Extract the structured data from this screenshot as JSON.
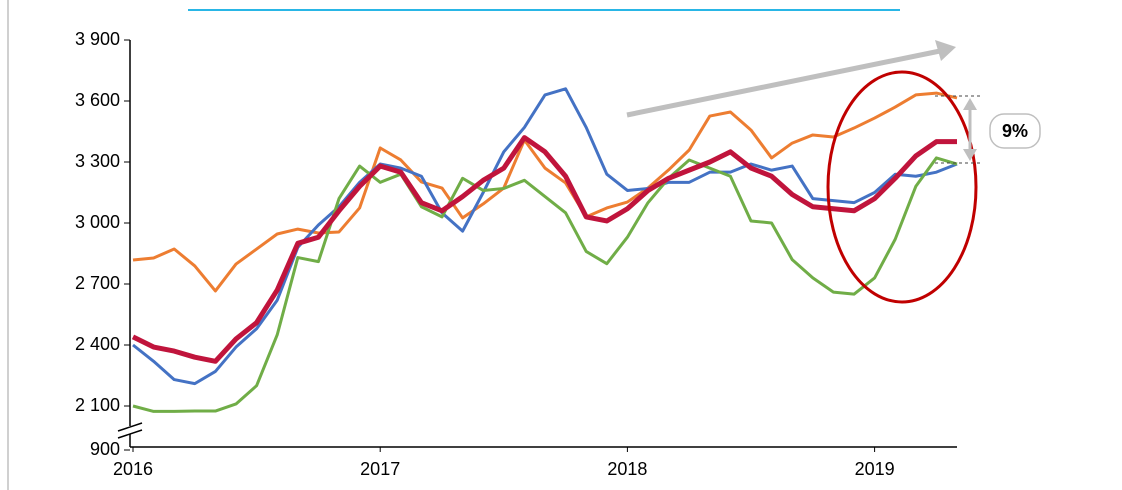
{
  "chart_data": {
    "type": "line",
    "x": [
      0,
      1,
      2,
      3,
      4,
      5,
      6,
      7,
      8,
      9,
      10,
      11,
      12,
      13,
      14,
      15,
      16,
      17,
      18,
      19,
      20,
      21,
      22,
      23,
      24,
      25,
      26,
      27,
      28,
      29,
      30,
      31,
      32,
      33,
      34,
      35,
      36,
      37,
      38,
      39,
      40
    ],
    "xlim": [
      0,
      40
    ],
    "xticks": [
      {
        "value": 0,
        "label": "2016"
      },
      {
        "value": 12,
        "label": "2017"
      },
      {
        "value": 24,
        "label": "2018"
      },
      {
        "value": 36,
        "label": "2019"
      }
    ],
    "ylim": [
      900,
      3900
    ],
    "y_break": [
      900,
      2100
    ],
    "yticks": [
      900,
      {
        "value": 2100,
        "label": "2 100"
      },
      {
        "value": 2400,
        "label": "2 400"
      },
      {
        "value": 2700,
        "label": "2 700"
      },
      {
        "value": 3000,
        "label": "3 000"
      },
      {
        "value": 3300,
        "label": "3 300"
      },
      {
        "value": 3600,
        "label": "3 600"
      },
      {
        "value": 3900,
        "label": "3 900"
      }
    ],
    "series": [
      {
        "color": "#ed7d31",
        "values": [
          2818,
          2828,
          2872,
          2789,
          2666,
          2798,
          2872,
          2946,
          2970,
          2951,
          2956,
          3074,
          3369,
          3310,
          3202,
          3172,
          3025,
          3094,
          3172,
          3408,
          3270,
          3197,
          3030,
          3074,
          3103,
          3172,
          3261,
          3359,
          3526,
          3546,
          3457,
          3320,
          3393,
          3433,
          3423,
          3467,
          3516,
          3570,
          3630,
          3639,
          3615
        ]
      },
      {
        "color": "#4472c4",
        "values": [
          2400,
          2320,
          2230,
          2210,
          2270,
          2390,
          2480,
          2620,
          2880,
          2990,
          3080,
          3200,
          3290,
          3270,
          3230,
          3050,
          2960,
          3150,
          3350,
          3470,
          3630,
          3660,
          3470,
          3240,
          3160,
          3170,
          3200,
          3200,
          3250,
          3250,
          3290,
          3260,
          3280,
          3120,
          3110,
          3100,
          3150,
          3240,
          3230,
          3250,
          3290
        ]
      },
      {
        "color": "#70ad47",
        "values": [
          2100,
          2030,
          2030,
          2040,
          2040,
          2110,
          2200,
          2450,
          2830,
          2810,
          3120,
          3280,
          3200,
          3240,
          3080,
          3030,
          3220,
          3160,
          3170,
          3210,
          3130,
          3050,
          2860,
          2800,
          2930,
          3100,
          3220,
          3310,
          3270,
          3230,
          3010,
          3000,
          2820,
          2730,
          2660,
          2650,
          2730,
          2920,
          3180,
          3320,
          3290
        ]
      },
      {
        "color": "#c0143c",
        "width": 5,
        "values": [
          2440,
          2390,
          2370,
          2340,
          2320,
          2430,
          2510,
          2670,
          2900,
          2930,
          3060,
          3180,
          3280,
          3250,
          3100,
          3060,
          3130,
          3210,
          3270,
          3420,
          3350,
          3230,
          3030,
          3010,
          3070,
          3160,
          3220,
          3260,
          3300,
          3350,
          3270,
          3230,
          3140,
          3080,
          3070,
          3060,
          3120,
          3220,
          3330,
          3400,
          3400
        ]
      }
    ],
    "annotations": [
      "9%"
    ]
  }
}
